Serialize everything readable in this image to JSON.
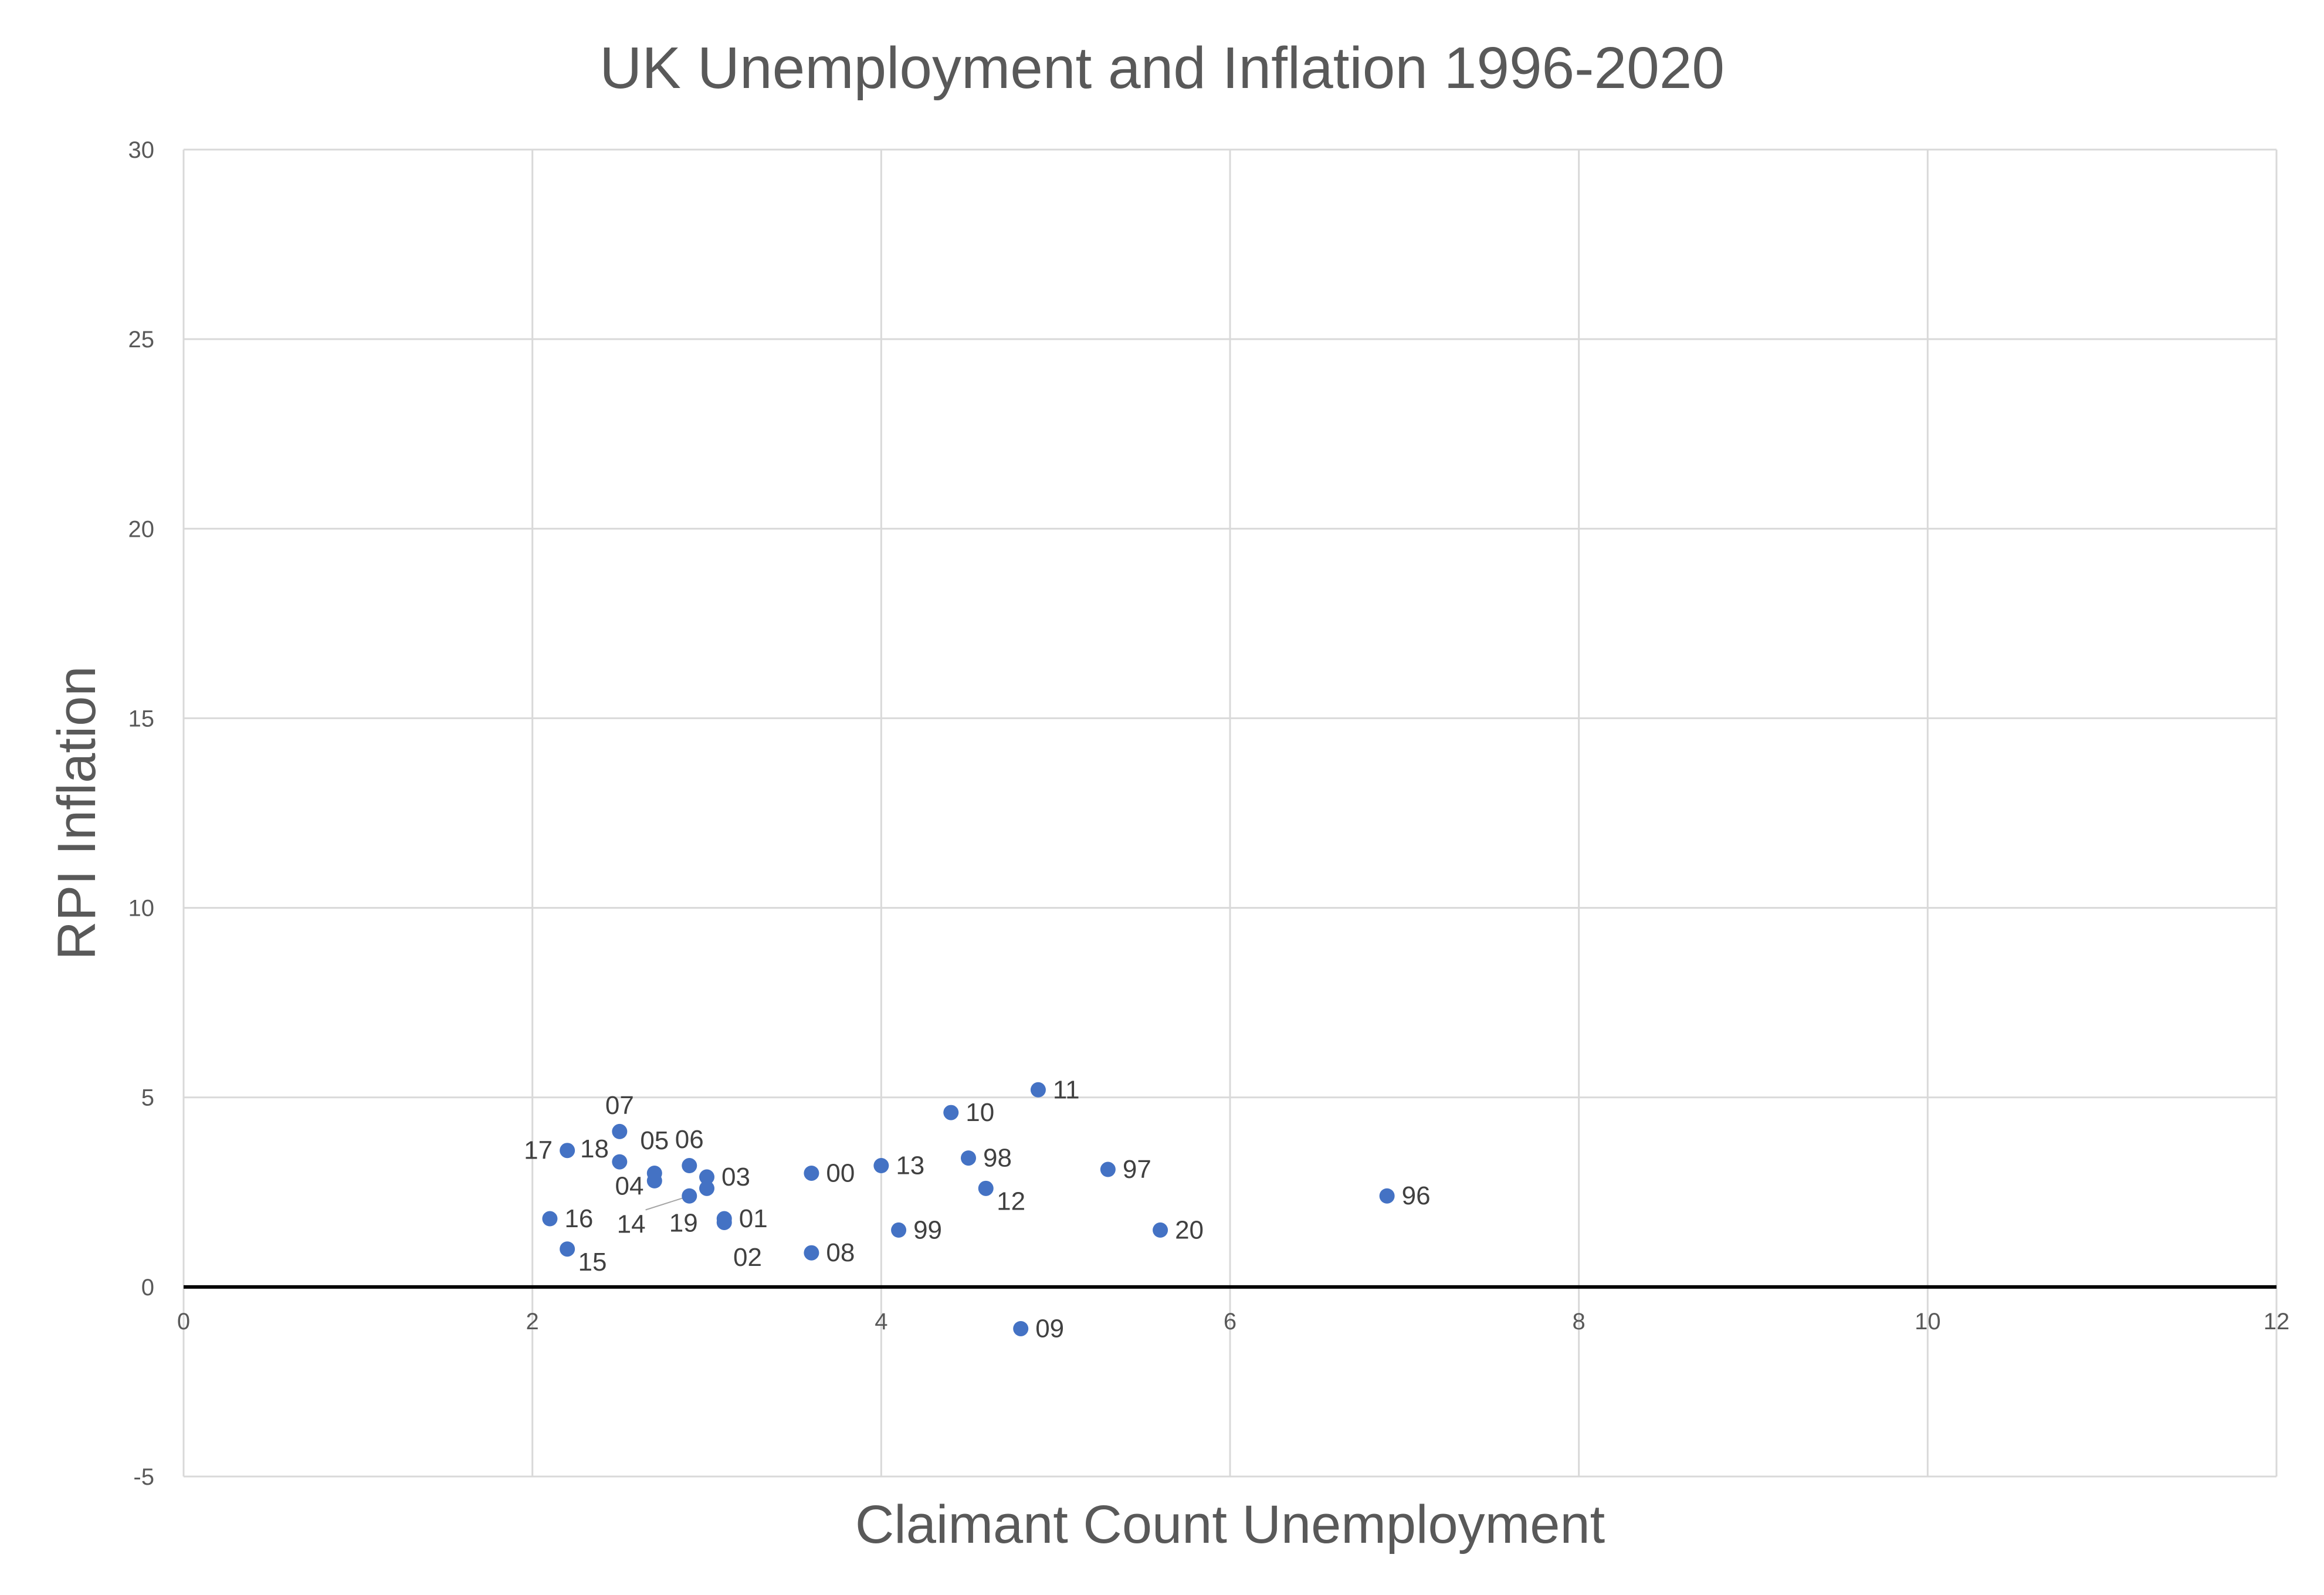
{
  "chart_data": {
    "type": "scatter",
    "title": "UK Unemployment and Inflation 1996-2020",
    "xlabel": "Claimant Count Unemployment",
    "ylabel": "RPI Inflation",
    "xlim": [
      0,
      12
    ],
    "ylim": [
      -5,
      30
    ],
    "xticks": [
      0,
      2,
      4,
      6,
      8,
      10,
      12
    ],
    "yticks": [
      -5,
      0,
      5,
      10,
      15,
      20,
      25,
      30
    ],
    "grid": true,
    "legend": "none",
    "marker_color": "#4472C4",
    "points": [
      {
        "label": "96",
        "x": 6.9,
        "y": 2.4
      },
      {
        "label": "97",
        "x": 5.3,
        "y": 3.1
      },
      {
        "label": "98",
        "x": 4.5,
        "y": 3.4
      },
      {
        "label": "99",
        "x": 4.1,
        "y": 1.5
      },
      {
        "label": "00",
        "x": 3.6,
        "y": 3.0
      },
      {
        "label": "01",
        "x": 3.1,
        "y": 1.8
      },
      {
        "label": "02",
        "x": 3.1,
        "y": 1.7
      },
      {
        "label": "03",
        "x": 3.0,
        "y": 2.9
      },
      {
        "label": "04",
        "x": 2.7,
        "y": 3.0
      },
      {
        "label": "05",
        "x": 2.7,
        "y": 2.8
      },
      {
        "label": "06",
        "x": 2.9,
        "y": 3.2
      },
      {
        "label": "07",
        "x": 2.5,
        "y": 4.1
      },
      {
        "label": "08",
        "x": 3.6,
        "y": 0.9
      },
      {
        "label": "09",
        "x": 4.8,
        "y": -1.1
      },
      {
        "label": "10",
        "x": 4.4,
        "y": 4.6
      },
      {
        "label": "11",
        "x": 4.9,
        "y": 5.2
      },
      {
        "label": "12",
        "x": 4.6,
        "y": 2.6
      },
      {
        "label": "13",
        "x": 4.0,
        "y": 3.2
      },
      {
        "label": "14",
        "x": 2.9,
        "y": 2.4
      },
      {
        "label": "15",
        "x": 2.2,
        "y": 1.0
      },
      {
        "label": "16",
        "x": 2.1,
        "y": 1.8
      },
      {
        "label": "17",
        "x": 2.2,
        "y": 3.6
      },
      {
        "label": "18",
        "x": 2.5,
        "y": 3.3
      },
      {
        "label": "19",
        "x": 3.0,
        "y": 2.6
      },
      {
        "label": "20",
        "x": 5.6,
        "y": 1.5
      }
    ]
  }
}
